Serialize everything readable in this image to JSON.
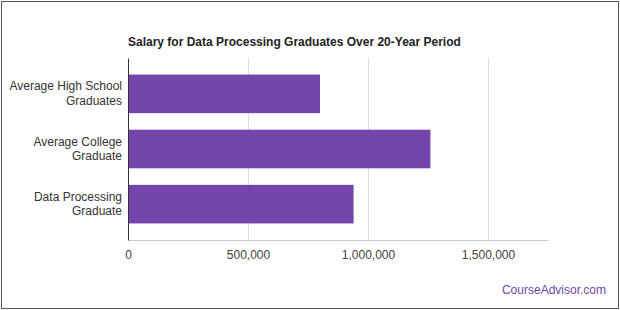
{
  "chart_data": {
    "type": "bar",
    "title": "Salary for Data Processing Graduates Over 20-Year Period",
    "categories": [
      "Average High School Graduates",
      "Average College Graduate",
      "Data Processing Graduate"
    ],
    "values": [
      800000,
      1260000,
      940000
    ],
    "color": "#7446ac",
    "orientation": "horizontal",
    "xlim": [
      0,
      1750000
    ],
    "xticks": [
      0,
      {
        "value": 500000,
        "label": "500,000"
      },
      {
        "value": 1000000,
        "label": "1,000,000"
      },
      {
        "value": 1500000,
        "label": "1,500,000"
      }
    ],
    "grid": true,
    "annotations": [
      "CourseAdvisor.com"
    ]
  }
}
